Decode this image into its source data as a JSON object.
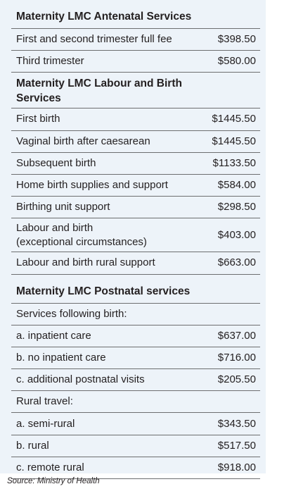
{
  "sections": [
    {
      "title": [
        "Maternity LMC Antenatal Services"
      ],
      "rows": [
        {
          "label": [
            "First and second trimester full fee"
          ],
          "value": "$398.50"
        },
        {
          "label": [
            "Third trimester"
          ],
          "value": "$580.00"
        }
      ]
    },
    {
      "title": [
        "Maternity LMC Labour and Birth",
        "Services"
      ],
      "rows": [
        {
          "label": [
            "First birth"
          ],
          "value": "$1445.50"
        },
        {
          "label": [
            "Vaginal birth after caesarean"
          ],
          "value": "$1445.50"
        },
        {
          "label": [
            "Subsequent birth"
          ],
          "value": "$1133.50"
        },
        {
          "label": [
            "Home birth supplies and support"
          ],
          "value": "$584.00"
        },
        {
          "label": [
            "Birthing unit support"
          ],
          "value": "$298.50"
        },
        {
          "label": [
            "Labour and birth",
            "(exceptional circumstances)"
          ],
          "value": "$403.00"
        },
        {
          "label": [
            "Labour and birth rural support"
          ],
          "value": "$663.00"
        }
      ]
    },
    {
      "title": [
        "Maternity LMC Postnatal services"
      ],
      "rows": [
        {
          "label": [
            "Services following birth:"
          ]
        },
        {
          "label": [
            "a. inpatient care"
          ],
          "value": "$637.00"
        },
        {
          "label": [
            "b. no inpatient care"
          ],
          "value": "$716.00"
        },
        {
          "label": [
            "c. additional postnatal visits"
          ],
          "value": "$205.50"
        },
        {
          "label": [
            "Rural travel:"
          ]
        },
        {
          "label": [
            "a. semi-rural"
          ],
          "value": "$343.50"
        },
        {
          "label": [
            "b. rural"
          ],
          "value": "$517.50"
        },
        {
          "label": [
            "c. remote rural"
          ],
          "value": "$918.00"
        }
      ]
    }
  ],
  "source": "Source: Ministry of Health"
}
